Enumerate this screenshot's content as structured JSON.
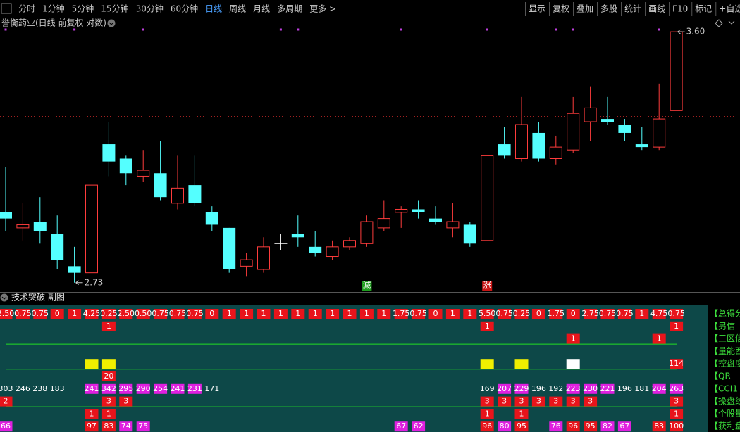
{
  "toolbar": {
    "periods": [
      {
        "label": "分时"
      },
      {
        "label": "1分钟"
      },
      {
        "label": "5分钟"
      },
      {
        "label": "15分钟"
      },
      {
        "label": "30分钟"
      },
      {
        "label": "60分钟"
      },
      {
        "label": "日线",
        "selected": true
      },
      {
        "label": "周线"
      },
      {
        "label": "月线"
      },
      {
        "label": "多周期"
      },
      {
        "label": "更多 >"
      }
    ],
    "tools": [
      "显示",
      "复权",
      "叠加",
      "多股",
      "统计",
      "画线",
      "F10",
      "标记",
      "+自选"
    ]
  },
  "chart_data": {
    "type": "candlestick",
    "title": "誉衡药业(日线 前复权 对数)",
    "log_scale": true,
    "ylim": [
      2.7,
      3.62
    ],
    "up_color": "#ff3c3c",
    "down_color": "#54ffff",
    "flat_color": "#ffffff",
    "open": [
      2.95,
      2.9,
      2.92,
      2.88,
      2.78,
      2.76,
      3.18,
      3.13,
      3.07,
      3.08,
      2.98,
      3.04,
      2.95,
      2.9,
      2.78,
      2.77,
      2.85,
      2.88,
      2.84,
      2.81,
      2.84,
      2.85,
      2.9,
      2.95,
      2.96,
      2.93,
      2.9,
      2.91,
      2.86,
      3.18,
      3.13,
      3.22,
      3.13,
      3.16,
      3.26,
      3.27,
      3.25,
      3.18,
      3.17,
      3.3
    ],
    "high": [
      3.1,
      2.98,
      3.0,
      2.94,
      2.84,
      3.04,
      3.26,
      3.14,
      3.16,
      3.19,
      3.14,
      3.14,
      2.97,
      2.9,
      2.82,
      2.87,
      2.88,
      2.94,
      2.89,
      2.86,
      2.87,
      2.94,
      2.99,
      2.97,
      2.99,
      2.97,
      2.98,
      2.92,
      3.14,
      3.24,
      3.35,
      3.26,
      3.21,
      3.35,
      3.39,
      3.35,
      3.27,
      3.24,
      3.4,
      3.6
    ],
    "low": [
      2.89,
      2.86,
      2.85,
      2.77,
      2.73,
      2.76,
      3.07,
      3.04,
      3.05,
      2.99,
      2.96,
      2.97,
      2.89,
      2.76,
      2.75,
      2.76,
      2.83,
      2.84,
      2.81,
      2.8,
      2.83,
      2.84,
      2.89,
      2.9,
      2.93,
      2.91,
      2.87,
      2.84,
      2.86,
      3.13,
      3.12,
      3.12,
      3.11,
      3.15,
      3.19,
      3.25,
      3.19,
      3.16,
      3.16,
      3.3
    ],
    "close": [
      2.93,
      2.91,
      2.89,
      2.8,
      2.76,
      3.04,
      3.12,
      3.08,
      3.09,
      3.0,
      3.03,
      2.98,
      2.91,
      2.77,
      2.8,
      2.84,
      2.85,
      2.87,
      2.82,
      2.84,
      2.86,
      2.92,
      2.93,
      2.96,
      2.95,
      2.92,
      2.92,
      2.85,
      3.14,
      3.14,
      3.25,
      3.13,
      3.17,
      3.29,
      3.31,
      3.26,
      3.22,
      3.17,
      3.27,
      3.6
    ],
    "max_label": {
      "index": 39,
      "value": 3.6,
      "label": "3.60"
    },
    "min_label": {
      "index": 4,
      "value": 2.73,
      "label": "2.73"
    },
    "markers": [
      {
        "index": 21,
        "label": "減",
        "color": "#1e9e1e"
      },
      {
        "index": 28,
        "label": "涨",
        "color": "#c81414"
      }
    ],
    "signal_indices": [
      0,
      4,
      8,
      16,
      17,
      23,
      28,
      32,
      33,
      38
    ],
    "signal_color": "#c040e0"
  },
  "panel": {
    "title": "技术突破 副图",
    "rows": [
      {
        "label": "【总得分",
        "color": "#e8141b",
        "cells": [
          "2.50",
          "0.75",
          "0.75",
          "0",
          "1",
          "4.25",
          "0.25",
          "2.50",
          "0.50",
          "0.75",
          "0.75",
          "0.75",
          "0",
          "1",
          "1",
          "1",
          "1",
          "1",
          "1",
          "1",
          "1",
          "1",
          "1",
          "1.75",
          "0.75",
          "0",
          "1",
          "1",
          "5.50",
          "0.75",
          "0.25",
          "0",
          "1.75",
          "0",
          "2.75",
          "0.75",
          "0.75",
          "1",
          "4.75",
          "0.75"
        ]
      },
      {
        "label": "【另信",
        "color": "#e8141b",
        "cells": [
          null,
          null,
          null,
          null,
          null,
          null,
          "1",
          null,
          null,
          null,
          null,
          null,
          null,
          null,
          null,
          null,
          null,
          null,
          null,
          null,
          null,
          null,
          null,
          null,
          null,
          null,
          null,
          null,
          "1",
          null,
          null,
          null,
          null,
          null,
          null,
          null,
          null,
          null,
          null,
          "1"
        ]
      },
      {
        "label": "【三区信",
        "color": "#e8141b",
        "separator": true,
        "cells": [
          null,
          null,
          null,
          null,
          null,
          null,
          null,
          null,
          null,
          null,
          null,
          null,
          null,
          null,
          null,
          null,
          null,
          null,
          null,
          null,
          null,
          null,
          null,
          null,
          null,
          null,
          null,
          null,
          null,
          null,
          null,
          null,
          null,
          "1",
          null,
          null,
          null,
          null,
          "1",
          null
        ]
      },
      {
        "label": "【量能西",
        "cells": [
          null,
          null,
          null,
          null,
          null,
          null,
          null,
          null,
          null,
          null,
          null,
          null,
          null,
          null,
          null,
          null,
          null,
          null,
          null,
          null,
          null,
          null,
          null,
          null,
          null,
          null,
          null,
          null,
          null,
          null,
          null,
          null,
          null,
          null,
          null,
          null,
          null,
          null,
          null,
          null
        ]
      },
      {
        "label": "【控盘度",
        "separator": true,
        "cells": [
          null,
          null,
          null,
          null,
          null,
          {
            "c": "#f0f000"
          },
          {
            "c": "#f0f000"
          },
          null,
          null,
          null,
          null,
          null,
          null,
          null,
          null,
          null,
          null,
          null,
          null,
          null,
          null,
          null,
          null,
          null,
          null,
          null,
          null,
          null,
          {
            "c": "#f0f000"
          },
          null,
          {
            "c": "#f0f000"
          },
          null,
          null,
          {
            "c": "#ffffff"
          },
          null,
          null,
          null,
          null,
          null,
          {
            "t": "114",
            "c": "#e8141b"
          }
        ]
      },
      {
        "label": "【QR",
        "color": "#e8141b",
        "cells": [
          null,
          null,
          null,
          null,
          null,
          null,
          "20",
          null,
          null,
          null,
          null,
          null,
          null,
          null,
          null,
          null,
          null,
          null,
          null,
          null,
          null,
          null,
          null,
          null,
          null,
          null,
          null,
          null,
          null,
          null,
          null,
          null,
          null,
          null,
          null,
          null,
          null,
          null,
          null,
          null
        ]
      },
      {
        "label": "【CCI1",
        "cells": [
          "303",
          "246",
          "238",
          "183",
          null,
          {
            "t": "241",
            "c": "#e020e0"
          },
          {
            "t": "342",
            "c": "#e020e0"
          },
          {
            "t": "295",
            "c": "#e020e0"
          },
          {
            "t": "290",
            "c": "#e020e0"
          },
          {
            "t": "254",
            "c": "#e020e0"
          },
          {
            "t": "241",
            "c": "#e020e0"
          },
          {
            "t": "231",
            "c": "#e020e0"
          },
          "171",
          null,
          null,
          null,
          null,
          null,
          null,
          null,
          null,
          null,
          null,
          null,
          null,
          null,
          null,
          null,
          "169",
          {
            "t": "207",
            "c": "#e020e0"
          },
          {
            "t": "229",
            "c": "#e020e0"
          },
          "196",
          "192",
          {
            "t": "223",
            "c": "#e020e0"
          },
          {
            "t": "230",
            "c": "#e020e0"
          },
          {
            "t": "221",
            "c": "#e020e0"
          },
          "196",
          "181",
          {
            "t": "204",
            "c": "#e020e0"
          },
          {
            "t": "263",
            "c": "#e020e0"
          }
        ]
      },
      {
        "label": "【操盘线",
        "color": "#e8141b",
        "separator": true,
        "cells": [
          "2",
          null,
          null,
          null,
          null,
          null,
          "3",
          "3",
          null,
          null,
          null,
          null,
          null,
          null,
          null,
          null,
          null,
          null,
          null,
          null,
          null,
          null,
          null,
          null,
          null,
          null,
          null,
          null,
          "3",
          "3",
          "3",
          "3",
          "3",
          "3",
          "3",
          null,
          null,
          null,
          null,
          "3"
        ]
      },
      {
        "label": "【个股量",
        "color": "#e8141b",
        "cells": [
          null,
          null,
          null,
          null,
          null,
          "1",
          "1",
          null,
          null,
          null,
          null,
          null,
          null,
          null,
          null,
          null,
          null,
          null,
          null,
          null,
          null,
          null,
          null,
          null,
          null,
          null,
          null,
          null,
          "1",
          null,
          "1",
          null,
          null,
          null,
          null,
          null,
          null,
          null,
          null,
          "1"
        ]
      },
      {
        "label": "【获利盘",
        "cells": [
          {
            "t": "66",
            "c": "#e020e0"
          },
          null,
          null,
          null,
          null,
          {
            "t": "97",
            "c": "#e8141b"
          },
          {
            "t": "83",
            "c": "#e8141b"
          },
          {
            "t": "74",
            "c": "#e020e0"
          },
          {
            "t": "75",
            "c": "#e020e0"
          },
          null,
          null,
          null,
          null,
          null,
          null,
          null,
          null,
          null,
          null,
          null,
          null,
          null,
          null,
          {
            "t": "67",
            "c": "#e020e0"
          },
          {
            "t": "62",
            "c": "#e020e0"
          },
          null,
          null,
          null,
          {
            "t": "96",
            "c": "#e8141b"
          },
          {
            "t": "80",
            "c": "#e020e0"
          },
          {
            "t": "95",
            "c": "#e8141b"
          },
          null,
          {
            "t": "76",
            "c": "#e020e0"
          },
          {
            "t": "96",
            "c": "#e8141b"
          },
          {
            "t": "95",
            "c": "#e8141b"
          },
          {
            "t": "82",
            "c": "#e020e0"
          },
          {
            "t": "67",
            "c": "#e020e0"
          },
          null,
          {
            "t": "83",
            "c": "#e8141b"
          },
          {
            "t": "100",
            "c": "#e8141b"
          }
        ]
      }
    ]
  }
}
